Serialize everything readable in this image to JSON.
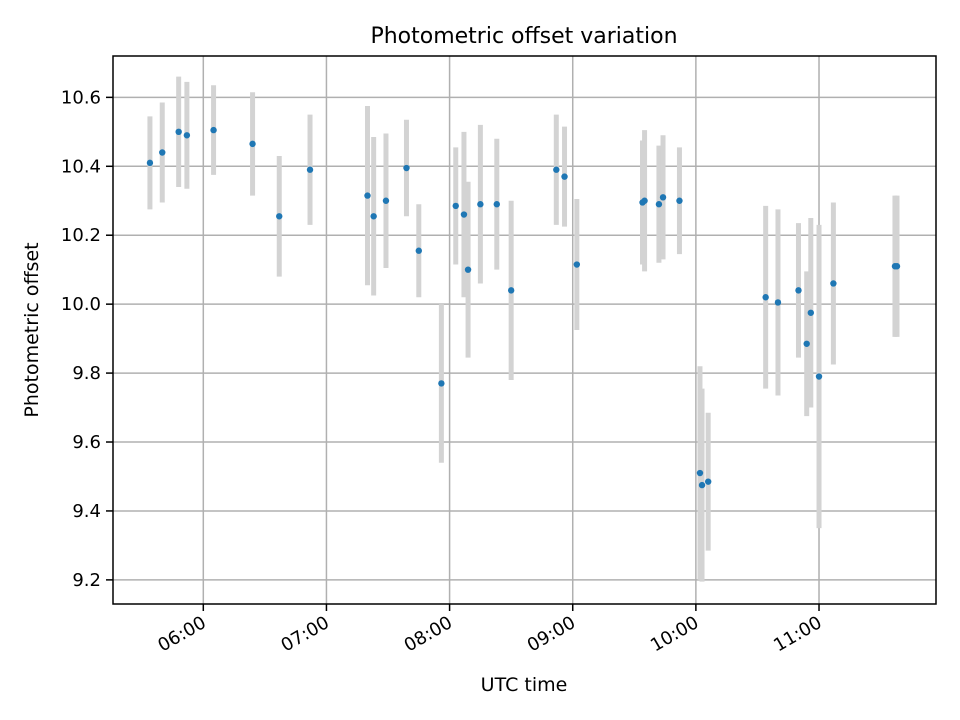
{
  "chart_data": {
    "type": "scatter",
    "title": "Photometric offset variation",
    "xlabel": "UTC time",
    "ylabel": "Photometric offset",
    "xlim": [
      "05:16",
      "11:57"
    ],
    "ylim": [
      9.13,
      10.72
    ],
    "grid": true,
    "x_ticks": [
      "06:00",
      "07:00",
      "08:00",
      "09:00",
      "10:00",
      "11:00"
    ],
    "y_ticks": [
      "9.2",
      "9.4",
      "9.6",
      "9.8",
      "10.0",
      "10.2",
      "10.4",
      "10.6"
    ],
    "colors": {
      "point": "#1f77b4",
      "errorbar": "#d3d3d3"
    },
    "points": [
      {
        "t": "05:34",
        "y": 10.41,
        "err": 0.135
      },
      {
        "t": "05:40",
        "y": 10.44,
        "err": 0.145
      },
      {
        "t": "05:48",
        "y": 10.5,
        "err": 0.16
      },
      {
        "t": "05:52",
        "y": 10.49,
        "err": 0.155
      },
      {
        "t": "06:05",
        "y": 10.505,
        "err": 0.13
      },
      {
        "t": "06:24",
        "y": 10.465,
        "err": 0.15
      },
      {
        "t": "06:37",
        "y": 10.255,
        "err": 0.175
      },
      {
        "t": "06:52",
        "y": 10.39,
        "err": 0.16
      },
      {
        "t": "07:20",
        "y": 10.315,
        "err": 0.26
      },
      {
        "t": "07:23",
        "y": 10.255,
        "err": 0.23
      },
      {
        "t": "07:29",
        "y": 10.3,
        "err": 0.195
      },
      {
        "t": "07:39",
        "y": 10.395,
        "err": 0.14
      },
      {
        "t": "07:45",
        "y": 10.155,
        "err": 0.135
      },
      {
        "t": "07:56",
        "y": 9.77,
        "err": 0.23
      },
      {
        "t": "08:03",
        "y": 10.285,
        "err": 0.17
      },
      {
        "t": "08:07",
        "y": 10.26,
        "err": 0.24
      },
      {
        "t": "08:09",
        "y": 10.1,
        "err": 0.255
      },
      {
        "t": "08:15",
        "y": 10.29,
        "err": 0.23
      },
      {
        "t": "08:23",
        "y": 10.29,
        "err": 0.19
      },
      {
        "t": "08:30",
        "y": 10.04,
        "err": 0.26
      },
      {
        "t": "08:52",
        "y": 10.39,
        "err": 0.16
      },
      {
        "t": "08:56",
        "y": 10.37,
        "err": 0.145
      },
      {
        "t": "09:02",
        "y": 10.115,
        "err": 0.19
      },
      {
        "t": "09:34",
        "y": 10.295,
        "err": 0.18
      },
      {
        "t": "09:35",
        "y": 10.3,
        "err": 0.205
      },
      {
        "t": "09:42",
        "y": 10.29,
        "err": 0.17
      },
      {
        "t": "09:44",
        "y": 10.31,
        "err": 0.18
      },
      {
        "t": "09:52",
        "y": 10.3,
        "err": 0.155
      },
      {
        "t": "10:02",
        "y": 9.51,
        "err": 0.31
      },
      {
        "t": "10:03",
        "y": 9.475,
        "err": 0.28
      },
      {
        "t": "10:06",
        "y": 9.485,
        "err": 0.2
      },
      {
        "t": "10:34",
        "y": 10.02,
        "err": 0.265
      },
      {
        "t": "10:40",
        "y": 10.005,
        "err": 0.27
      },
      {
        "t": "10:50",
        "y": 10.04,
        "err": 0.195
      },
      {
        "t": "10:54",
        "y": 9.885,
        "err": 0.21
      },
      {
        "t": "10:56",
        "y": 9.975,
        "err": 0.275
      },
      {
        "t": "11:00",
        "y": 9.79,
        "err": 0.44
      },
      {
        "t": "11:07",
        "y": 10.06,
        "err": 0.235
      },
      {
        "t": "11:37",
        "y": 10.11,
        "err": 0.205
      },
      {
        "t": "11:38",
        "y": 10.11,
        "err": 0.205
      }
    ]
  }
}
